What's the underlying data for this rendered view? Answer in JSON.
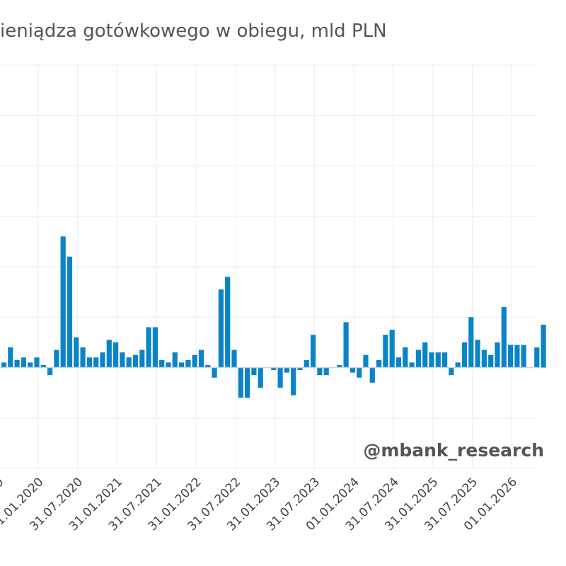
{
  "chart_data": {
    "type": "bar",
    "title": "ieniądza gotówkowego w obiegu, mld PLN",
    "xlabel": "",
    "ylabel": "",
    "ylim": [
      -2.0,
      6.0
    ],
    "grid": true,
    "legend": "none",
    "bar_color": "#0a84c6",
    "x_tick_labels": [
      "9",
      "31.01.2020",
      "31.07.2020",
      "31.01.2021",
      "31.07.2021",
      "31.01.2022",
      "31.07.2022",
      "31.01.2023",
      "31.07.2023",
      "01.01.2024",
      "31.07.2024",
      "31.01.2025",
      "31.07.2025",
      "01.01.2026"
    ],
    "x_tick_label_positions": [
      -0.8,
      5.2,
      11.2,
      17.2,
      23.2,
      29.2,
      35.2,
      41.2,
      47.2,
      53.2,
      59.2,
      65.2,
      71.2,
      77.2
    ],
    "values": [
      0.1,
      0.4,
      0.15,
      0.2,
      0.1,
      0.2,
      0.05,
      -0.15,
      0.35,
      2.6,
      2.2,
      0.6,
      0.4,
      0.2,
      0.2,
      0.3,
      0.55,
      0.5,
      0.3,
      0.2,
      0.25,
      0.35,
      0.8,
      0.8,
      0.15,
      0.1,
      0.3,
      0.1,
      0.15,
      0.25,
      0.35,
      0.05,
      -0.2,
      1.55,
      1.8,
      0.35,
      -0.6,
      -0.6,
      -0.15,
      -0.4,
      0.0,
      -0.05,
      -0.4,
      -0.1,
      -0.55,
      -0.05,
      0.15,
      0.65,
      -0.15,
      -0.15,
      0.0,
      0.05,
      0.9,
      -0.1,
      -0.2,
      0.25,
      -0.3,
      0.15,
      0.65,
      0.75,
      0.2,
      0.4,
      0.1,
      0.35,
      0.5,
      0.3,
      0.3,
      0.3,
      -0.15,
      0.1,
      0.5,
      1.0,
      0.55,
      0.35,
      0.25,
      0.5,
      1.2,
      0.45,
      0.45,
      0.45,
      0.0,
      0.4,
      0.85
    ]
  },
  "watermark": "@mbank_research"
}
